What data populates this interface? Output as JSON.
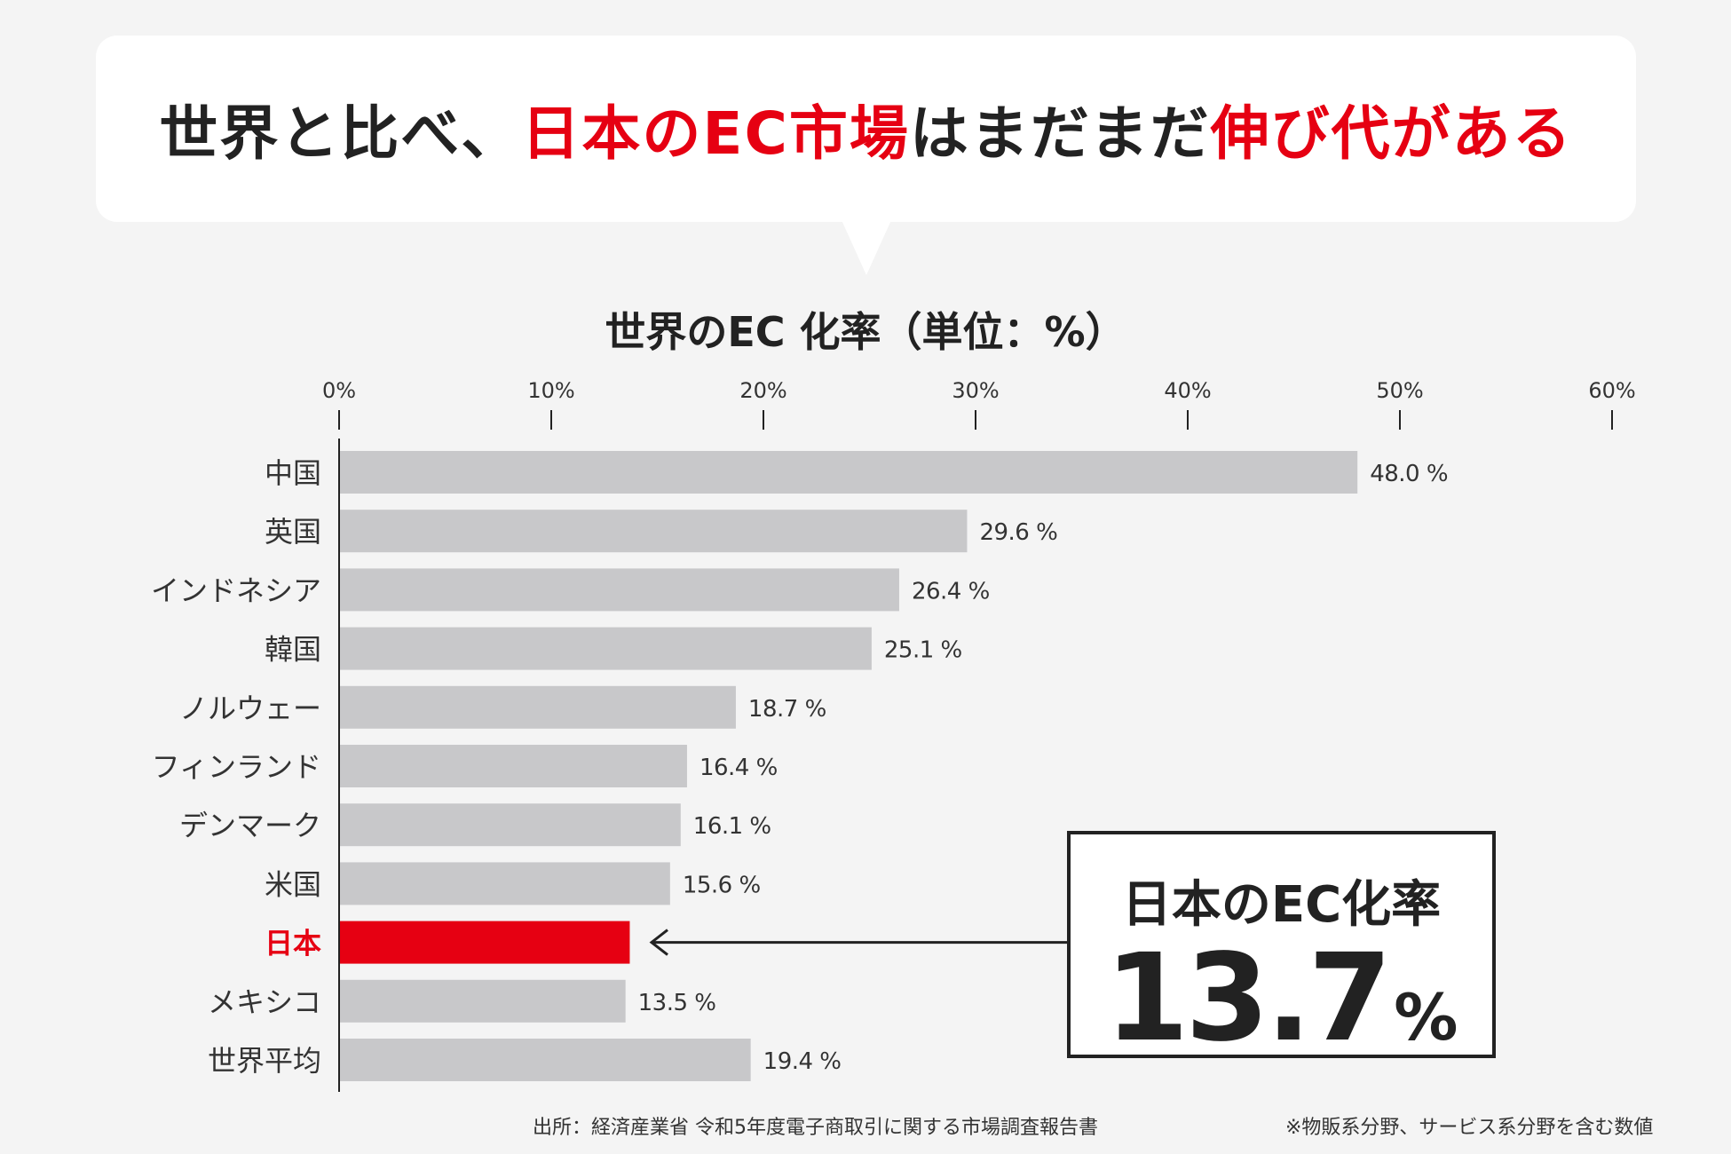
{
  "headline": {
    "part1": "世界と比べ、",
    "part2": "日本のEC市場",
    "part3": "はまだまだ",
    "part4": "伸び代がある"
  },
  "colors": {
    "accent": "#e60012",
    "bar": "#c8c8ca",
    "text": "#222222",
    "background": "#f4f4f4"
  },
  "chart_data": {
    "type": "bar",
    "orientation": "horizontal",
    "title": "世界のEC 化率（単位：%）",
    "xlim": [
      0,
      60
    ],
    "ticks": [
      0,
      10,
      20,
      30,
      40,
      50,
      60
    ],
    "tick_labels": [
      "0%",
      "10%",
      "20%",
      "30%",
      "40%",
      "50%",
      "60%"
    ],
    "categories": [
      "中国",
      "英国",
      "インドネシア",
      "韓国",
      "ノルウェー",
      "フィンランド",
      "デンマーク",
      "米国",
      "日本",
      "メキシコ",
      "世界平均"
    ],
    "values": [
      48.0,
      29.6,
      26.4,
      25.1,
      18.7,
      16.4,
      16.1,
      15.6,
      13.7,
      13.5,
      19.4
    ],
    "value_labels": [
      "48.0 %",
      "29.6 %",
      "26.4 %",
      "25.1 %",
      "18.7 %",
      "16.4 %",
      "16.1 %",
      "15.6 %",
      "",
      "13.5 %",
      "19.4 %"
    ],
    "highlight": "日本"
  },
  "callout": {
    "label": "日本のEC化率",
    "value": "13.7",
    "unit": "%"
  },
  "footer": {
    "source": "出所：経済産業省 令和5年度電子商取引に関する市場調査報告書",
    "note": "※物販系分野、サービス系分野を含む数値"
  }
}
